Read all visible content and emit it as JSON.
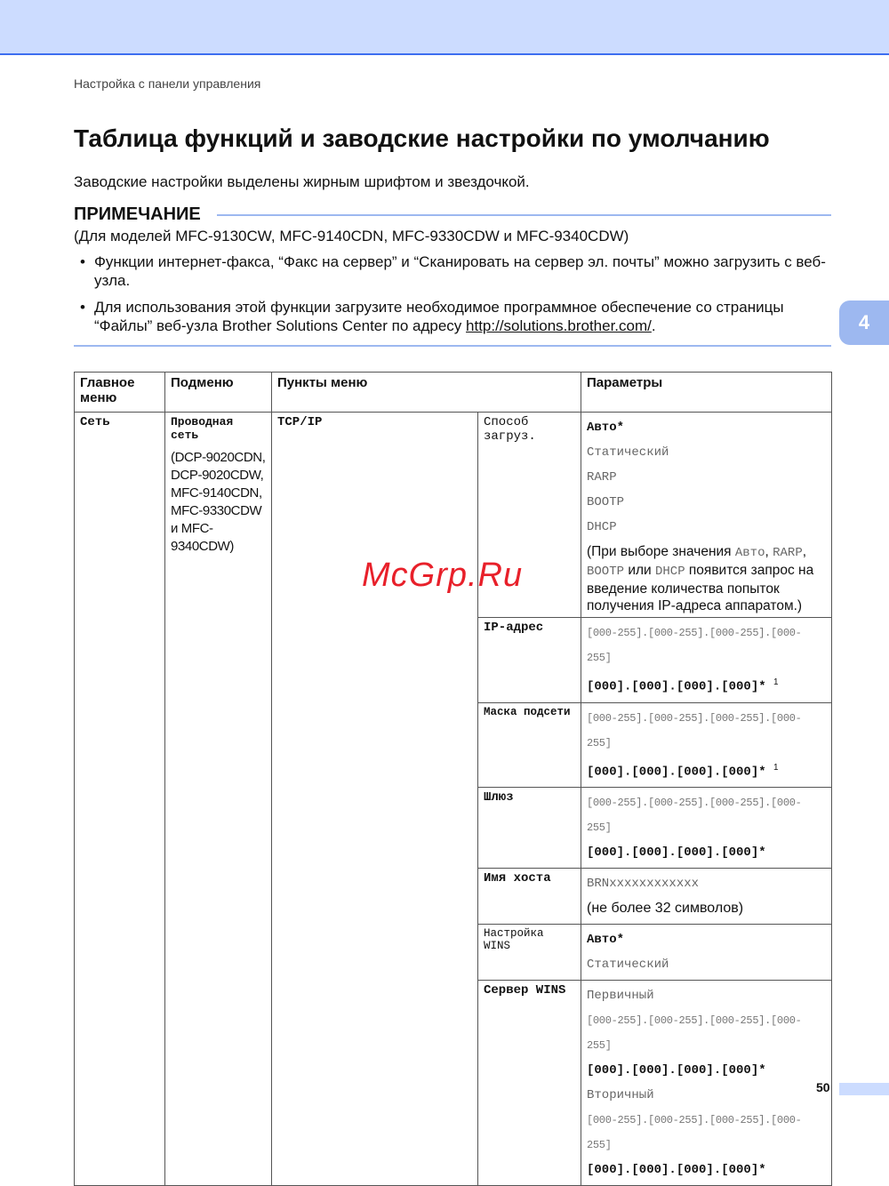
{
  "header": {
    "running_title": "Настройка с панели управления"
  },
  "title": "Таблица функций и заводские настройки по умолчанию",
  "intro": "Заводские настройки выделены жирным шрифтом и звездочкой.",
  "note": {
    "heading": "ПРИМЕЧАНИЕ",
    "models": "(Для моделей MFC-9130CW, MFC-9140CDN, MFC-9330CDW и MFC-9340CDW)",
    "bullet1": "Функции интернет-факса, “Факс на сервер” и “Сканировать на сервер эл. почты” можно загрузить с веб-узла.",
    "bullet2_pre": "Для использования этой функции загрузите необходимое программное обеспечение со страницы “Файлы” веб-узла Brother Solutions Center по адресу ",
    "bullet2_link": "http://solutions.brother.com/",
    "bullet2_post": "."
  },
  "chapter_tab": "4",
  "table": {
    "headers": [
      "Главное меню",
      "Подменю",
      "Пункты меню",
      "Параметры"
    ],
    "main_menu": "Сеть",
    "submenu": "Проводная сеть",
    "submenu_models": "(DCP-9020CDN, DCP-9020CDW, MFC-9140CDN, MFC-9330CDW и MFC-9340CDW)",
    "menu_item": "TCP/IP",
    "rows": {
      "boot": {
        "label": "Способ загруз.",
        "default": "Авто*",
        "opts": [
          "Статический",
          "RARP",
          "BOOTP",
          "DHCP"
        ],
        "note_a": "(При выборе значения ",
        "note_auto": "Авто",
        ", ": "",
        "note_b": ", ",
        "note_rarp": "RARP",
        "note_c": ",",
        "note_bootp": "BOOTP",
        "note_d": " или ",
        "note_dhcp": "DHCP",
        "note_e": " появится запрос на введение количества попыток получения IP-адреса аппаратом.)"
      },
      "ip": {
        "label": "IP-адрес",
        "range": "[000-255].[000-255].[000-255].[000-255]",
        "default": "[000].[000].[000].[000]*",
        "footnote": "1"
      },
      "mask": {
        "label": "Маска подсети",
        "range": "[000-255].[000-255].[000-255].[000-255]",
        "default": "[000].[000].[000].[000]*",
        "footnote": "1"
      },
      "gateway": {
        "label": "Шлюз",
        "range": "[000-255].[000-255].[000-255].[000-255]",
        "default": "[000].[000].[000].[000]*"
      },
      "host": {
        "label": "Имя хоста",
        "value": "BRNxxxxxxxxxxxx",
        "note": "(не более 32 символов)"
      },
      "wins_cfg": {
        "label": "Настройка WINS",
        "default": "Авто*",
        "opt": "Статический"
      },
      "wins_srv": {
        "label": "Сервер WINS",
        "primary": "Первичный",
        "primary_range": "[000-255].[000-255].[000-255].[000-255]",
        "primary_default": "[000].[000].[000].[000]*",
        "secondary": "Вторичный",
        "secondary_range": "[000-255].[000-255].[000-255].[000-255]",
        "secondary_default": "[000].[000].[000].[000]*"
      }
    }
  },
  "watermark": "McGrp.Ru",
  "footer": {
    "page_number": "50"
  }
}
